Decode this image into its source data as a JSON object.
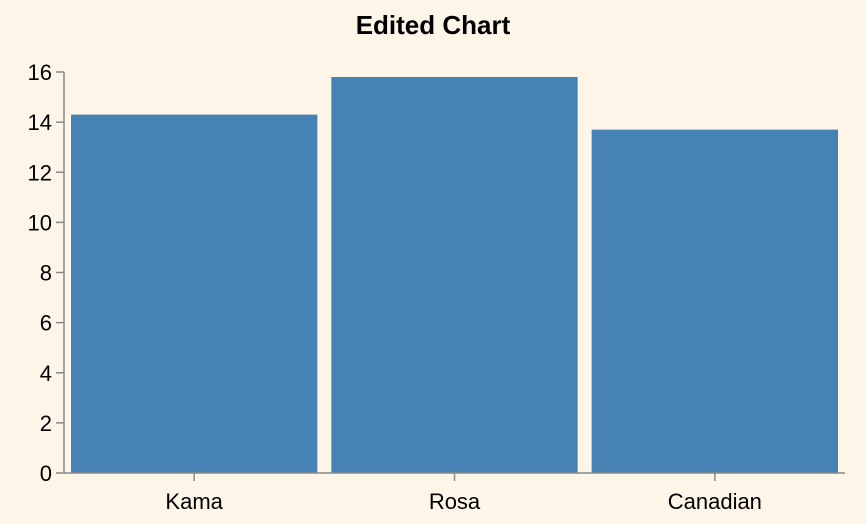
{
  "chart_data": {
    "type": "bar",
    "title": "Edited Chart",
    "categories": [
      "Kama",
      "Rosa",
      "Canadian"
    ],
    "values": [
      14.3,
      15.8,
      13.7
    ],
    "xlabel": "",
    "ylabel": "",
    "ylim": [
      0,
      16
    ],
    "yticks": [
      "0",
      "2",
      "4",
      "6",
      "8",
      "10",
      "12",
      "14",
      "16"
    ],
    "grid": false,
    "bar_color": "#4682b4",
    "background_color": "#fdf5e7",
    "axis_color": "#888888"
  }
}
